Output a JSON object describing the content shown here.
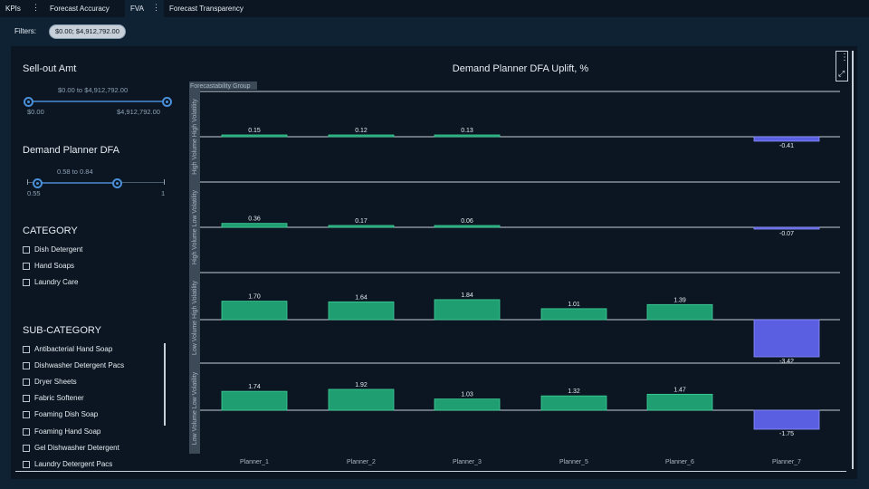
{
  "tabs": [
    {
      "label": "KPIs",
      "has_menu": true
    },
    {
      "label": "Forecast Accuracy",
      "has_menu": false
    },
    {
      "label": "FVA",
      "has_menu": true,
      "active": true
    },
    {
      "label": "Forecast Transparency",
      "has_menu": false
    }
  ],
  "filters": {
    "label": "Filters:",
    "pill": "$0.00; $4,912,792.00"
  },
  "sellout": {
    "title": "Sell-out Amt",
    "range_text": "$0.00 to $4,912,792.00",
    "min_label": "$0.00",
    "max_label": "$4,912,792.00",
    "range": [
      0,
      4912792
    ],
    "selected": [
      0,
      4912792
    ]
  },
  "dfa": {
    "title": "Demand Planner DFA",
    "range_text": "0.58 to 0.84",
    "min_label": "0.55",
    "max_label": "1",
    "range": [
      0.55,
      1
    ],
    "selected": [
      0.58,
      0.84
    ]
  },
  "category": {
    "title": "CATEGORY",
    "items": [
      "Dish Detergent",
      "Hand Soaps",
      "Laundry Care"
    ]
  },
  "subcategory": {
    "title": "SUB-CATEGORY",
    "items": [
      "Antibacterial Hand Soap",
      "Dishwasher Detergent Pacs",
      "Dryer Sheets",
      "Fabric Softener",
      "Foaming Dish Soap",
      "Foaming Hand Soap",
      "Gel Dishwasher Detergent",
      "Laundry Detergent Pacs"
    ]
  },
  "icons": {
    "tab_menu": "more-vertical-icon",
    "chart_menu": "more-vertical-icon",
    "expand": "expand-icon"
  },
  "colors": {
    "positive": "#1f9e72",
    "negative": "#5a5ee0",
    "background": "#0b1622",
    "panel": "#0f2234",
    "slider": "#4a8fd8"
  },
  "chart_data": {
    "type": "bar",
    "title": "Demand Planner DFA Uplift, %",
    "group_axis_label": "Forecastability Group",
    "categories": [
      "Planner_1",
      "Planner_2",
      "Planner_3",
      "Planner_5",
      "Planner_6",
      "Planner_7"
    ],
    "panels": [
      {
        "label": "High Volume High Volatility",
        "values": [
          0.15,
          0.12,
          0.13,
          null,
          null,
          -0.41
        ]
      },
      {
        "label": "High Volume Low Volatility",
        "values": [
          0.36,
          0.17,
          0.06,
          null,
          null,
          -0.07
        ]
      },
      {
        "label": "Low Volume High Volatility",
        "values": [
          1.7,
          1.64,
          1.84,
          1.01,
          1.39,
          -3.42
        ]
      },
      {
        "label": "Low Volume Low Volatility",
        "values": [
          1.74,
          1.92,
          1.03,
          1.32,
          1.47,
          -1.75
        ]
      }
    ]
  }
}
